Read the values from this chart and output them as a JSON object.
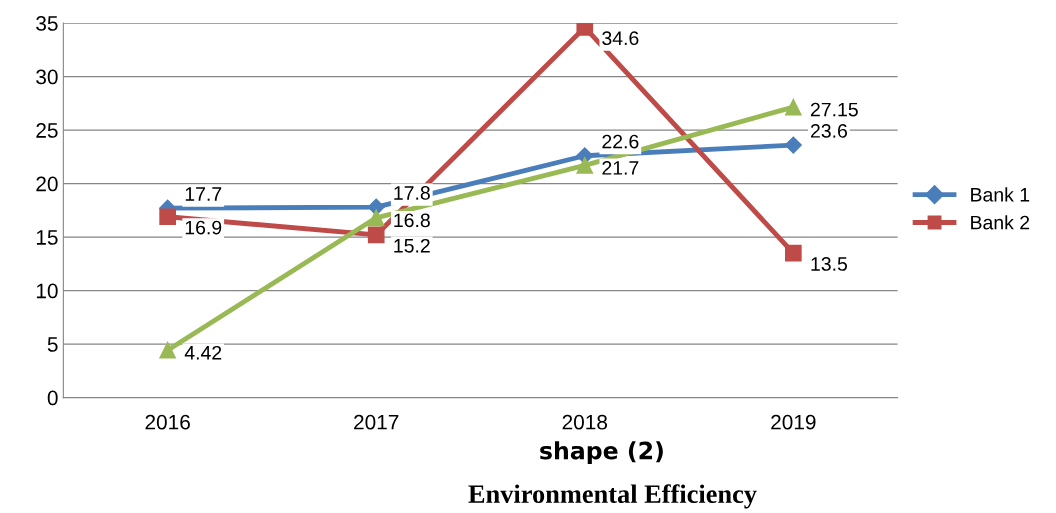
{
  "chart_data": {
    "type": "line",
    "title": "Environmental Efficiency",
    "subtitle": "shape (2)",
    "categories": [
      "2016",
      "2017",
      "2018",
      "2019"
    ],
    "series": [
      {
        "name": "Bank 1",
        "color": "#4a7ebb",
        "marker": "diamond",
        "values": [
          17.7,
          17.8,
          22.6,
          23.6
        ]
      },
      {
        "name": "Bank 2",
        "color": "#be4b48",
        "marker": "square",
        "values": [
          16.9,
          15.2,
          34.6,
          13.5
        ]
      },
      {
        "color": "#98b954",
        "marker": "triangle",
        "values": [
          4.42,
          16.8,
          21.7,
          27.15
        ]
      }
    ],
    "ylim": [
      0,
      35
    ],
    "yticks": [
      0,
      5,
      10,
      15,
      20,
      25,
      30,
      35
    ],
    "grid": "y",
    "legend": "right",
    "data_labels": true,
    "line_style": "solid"
  }
}
